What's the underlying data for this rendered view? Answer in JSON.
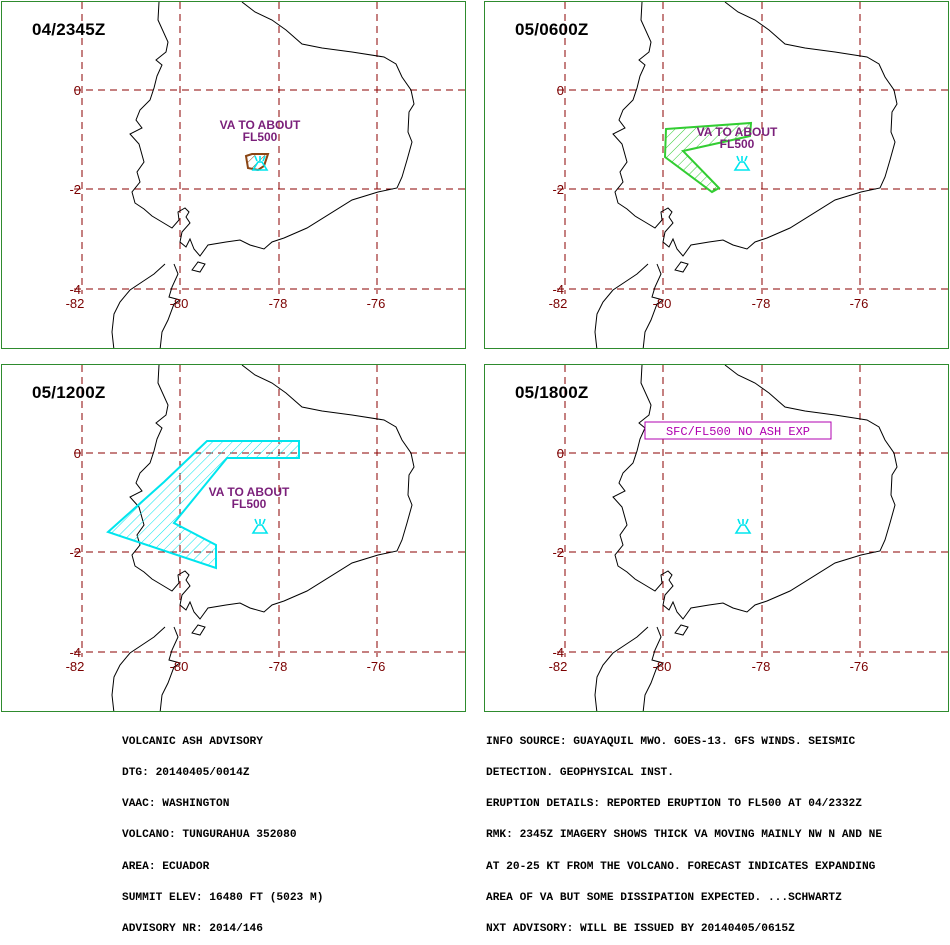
{
  "panels": [
    {
      "time": "04/2345Z",
      "va_label": [
        "VA TO  ABOUT",
        "FL500"
      ],
      "ash": "brown"
    },
    {
      "time": "05/0600Z",
      "va_label": [
        "VA TO ABOUT",
        "FL500"
      ],
      "ash": "green"
    },
    {
      "time": "05/1200Z",
      "va_label": [
        "VA TO ABOUT",
        "FL500"
      ],
      "ash": "cyan"
    },
    {
      "time": "05/1800Z",
      "sfc_label": "SFC/FL500 NO ASH EXP",
      "ash": "none"
    }
  ],
  "map": {
    "lon_labels": [
      "-82",
      "-80",
      "-78",
      "-76"
    ],
    "lat_labels": [
      "0",
      "-2",
      "-4"
    ],
    "grid_color": "#8b0000",
    "coast_color": "#000000",
    "volcano_color": "#00e5ee",
    "ash_colors": {
      "brown": "#8b4513",
      "green": "#32cd32",
      "cyan": "#00e5ee"
    }
  },
  "advisory_left": [
    "VOLCANIC ASH ADVISORY",
    "DTG: 20140405/0014Z",
    "VAAC: WASHINGTON",
    "VOLCANO: TUNGURAHUA 352080",
    "AREA: ECUADOR",
    "SUMMIT ELEV: 16480 FT (5023 M)",
    "ADVISORY NR: 2014/146"
  ],
  "advisory_right": [
    "INFO SOURCE: GUAYAQUIL MWO. GOES-13. GFS WINDS. SEISMIC",
    "DETECTION. GEOPHYSICAL INST.",
    "ERUPTION DETAILS: REPORTED ERUPTION TO FL500 AT 04/2332Z",
    "RMK: 2345Z IMAGERY SHOWS THICK VA MOVING MAINLY NW N AND NE",
    "AT 20-25 KT FROM THE VOLCANO. FORECAST INDICATES EXPANDING",
    "AREA OF VA BUT SOME DISSIPATION EXPECTED. ...SCHWARTZ",
    "NXT ADVISORY: WILL BE ISSUED BY 20140405/0615Z"
  ]
}
